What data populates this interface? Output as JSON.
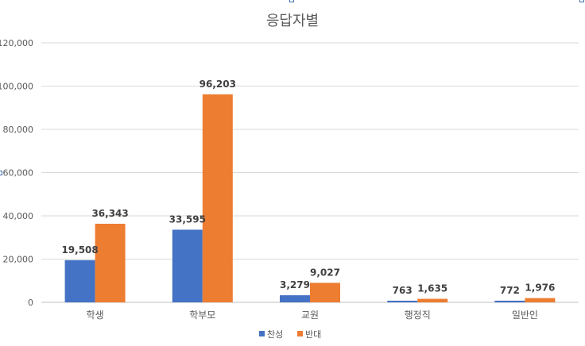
{
  "chart_data": {
    "type": "bar",
    "title": "응답자별",
    "categories": [
      "학생",
      "학부모",
      "교원",
      "행정직",
      "일반인"
    ],
    "series": [
      {
        "name": "찬성",
        "values": [
          19508,
          33595,
          3279,
          763,
          772
        ],
        "labels": [
          "19,508",
          "33,595",
          "3,279",
          "763",
          "772"
        ],
        "color": "#4472C4"
      },
      {
        "name": "반대",
        "values": [
          36343,
          96203,
          9027,
          1635,
          1976
        ],
        "labels": [
          "36,343",
          "96,203",
          "9,027",
          "1,635",
          "1,976"
        ],
        "color": "#ED7D31"
      }
    ],
    "yticks": [
      "0",
      "20,000",
      "40,000",
      "60,000",
      "80,000",
      "100,000",
      "120,000"
    ],
    "ylim": [
      0,
      120000
    ],
    "grid": true,
    "legend_position": "bottom"
  }
}
